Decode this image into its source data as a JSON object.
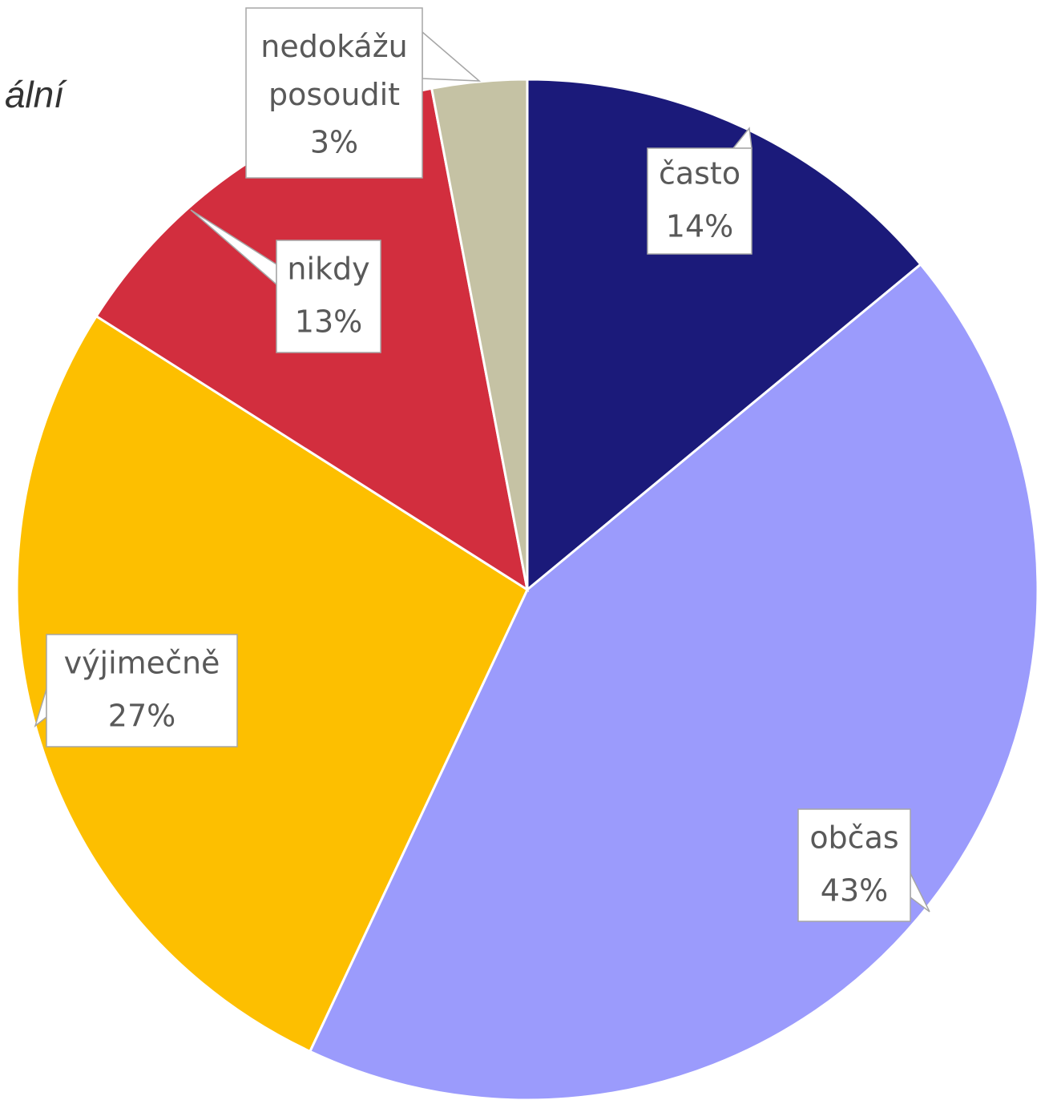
{
  "chart_data": {
    "type": "pie",
    "title": "ální",
    "categories": [
      "často",
      "občas",
      "výjimečně",
      "nikdy",
      "nedokážu posoudit"
    ],
    "values": [
      14,
      43,
      27,
      13,
      3
    ],
    "value_labels": [
      "14%",
      "43%",
      "27%",
      "13%",
      "3%"
    ],
    "colors": [
      "#1b1a7a",
      "#9b9bfc",
      "#fdbf00",
      "#d22e3e",
      "#c5c2a4"
    ]
  }
}
